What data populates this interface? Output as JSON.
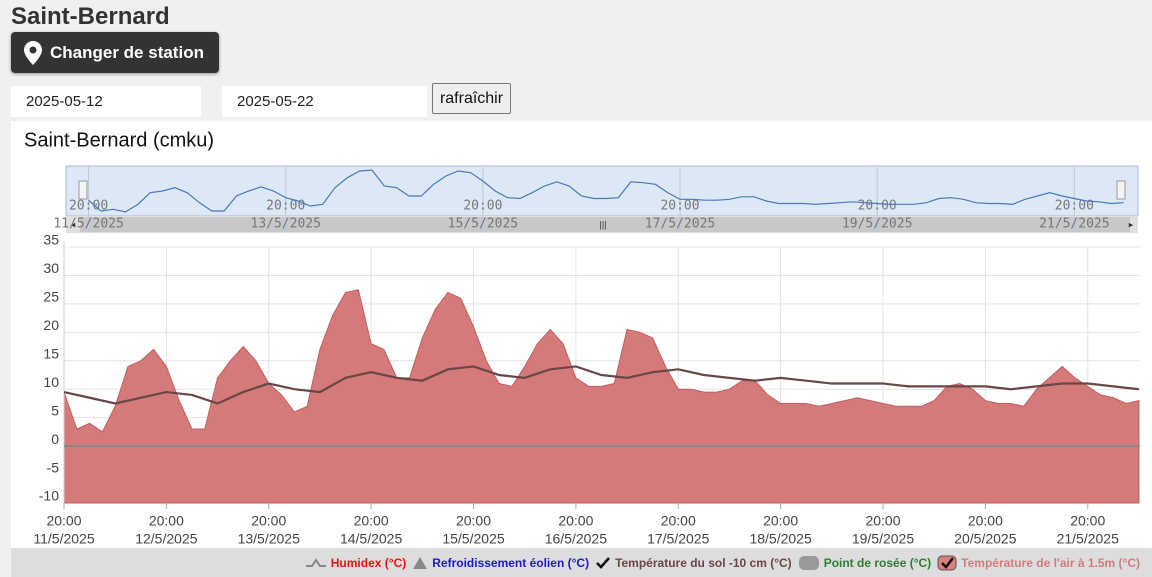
{
  "header": {
    "title": "Saint-Bernard",
    "button": "Changer de station"
  },
  "form": {
    "start": "2025-05-12",
    "end": "2025-05-22",
    "refresh": "rafraîchir"
  },
  "chart_data": {
    "type": "area",
    "title": "Saint-Bernard (cmku)",
    "xlim": [
      "2025-05-11T20:00",
      "2025-05-22T08:15"
    ],
    "ylim": [
      -10,
      35
    ],
    "yticks": [
      -10,
      -5,
      0,
      5,
      10,
      15,
      20,
      25,
      30,
      35
    ],
    "grid": true,
    "xticks": [
      {
        "value": "2025-05-11T20:00",
        "label": [
          "20:00",
          "11/5/2025"
        ]
      },
      {
        "value": "2025-05-12T20:00",
        "label": [
          "20:00",
          "12/5/2025"
        ]
      },
      {
        "value": "2025-05-13T20:00",
        "label": [
          "20:00",
          "13/5/2025"
        ]
      },
      {
        "value": "2025-05-14T20:00",
        "label": [
          "20:00",
          "14/5/2025"
        ]
      },
      {
        "value": "2025-05-15T20:00",
        "label": [
          "20:00",
          "15/5/2025"
        ]
      },
      {
        "value": "2025-05-16T20:00",
        "label": [
          "20:00",
          "16/5/2025"
        ]
      },
      {
        "value": "2025-05-17T20:00",
        "label": [
          "20:00",
          "17/5/2025"
        ]
      },
      {
        "value": "2025-05-18T20:00",
        "label": [
          "20:00",
          "18/5/2025"
        ]
      },
      {
        "value": "2025-05-19T20:00",
        "label": [
          "20:00",
          "19/5/2025"
        ]
      },
      {
        "value": "2025-05-20T20:00",
        "label": [
          "20:00",
          "20/5/2025"
        ]
      },
      {
        "value": "2025-05-21T20:00",
        "label": [
          "20:00",
          "21/5/2025"
        ]
      }
    ],
    "navigator": {
      "xlim": [
        "2025-05-11T14:30",
        "2025-05-22T11:30"
      ],
      "ylim": [
        0,
        30
      ],
      "xticks": [
        {
          "value": "2025-05-11T20:00",
          "label": [
            "20:00",
            "11/5/2025"
          ]
        },
        {
          "value": "2025-05-13T20:00",
          "label": [
            "20:00",
            "13/5/2025"
          ]
        },
        {
          "value": "2025-05-15T20:00",
          "label": [
            "20:00",
            "15/5/2025"
          ]
        },
        {
          "value": "2025-05-17T20:00",
          "label": [
            "20:00",
            "17/5/2025"
          ]
        },
        {
          "value": "2025-05-19T20:00",
          "label": [
            "20:00",
            "19/5/2025"
          ]
        },
        {
          "value": "2025-05-21T20:00",
          "label": [
            "20:00",
            "21/5/2025"
          ]
        }
      ]
    },
    "series": [
      {
        "name": "Humidex (°C)",
        "color": "#ee1111",
        "visible": false
      },
      {
        "name": "Refroidissement éolien (°C)",
        "color": "#1a1acc",
        "visible": false
      },
      {
        "name": "Température du sol -10 cm (°C)",
        "color": "#6a4646",
        "type": "line",
        "visible": true,
        "x": [
          "2025-05-11T20:00",
          "2025-05-12T02:00",
          "2025-05-12T08:00",
          "2025-05-12T14:00",
          "2025-05-12T20:00",
          "2025-05-13T02:00",
          "2025-05-13T08:00",
          "2025-05-13T14:00",
          "2025-05-13T20:00",
          "2025-05-14T02:00",
          "2025-05-14T08:00",
          "2025-05-14T14:00",
          "2025-05-14T20:00",
          "2025-05-15T02:00",
          "2025-05-15T08:00",
          "2025-05-15T14:00",
          "2025-05-15T20:00",
          "2025-05-16T02:00",
          "2025-05-16T08:00",
          "2025-05-16T14:00",
          "2025-05-16T20:00",
          "2025-05-17T02:00",
          "2025-05-17T08:00",
          "2025-05-17T14:00",
          "2025-05-17T20:00",
          "2025-05-18T02:00",
          "2025-05-18T08:00",
          "2025-05-18T14:00",
          "2025-05-18T20:00",
          "2025-05-19T02:00",
          "2025-05-19T08:00",
          "2025-05-19T14:00",
          "2025-05-19T20:00",
          "2025-05-20T02:00",
          "2025-05-20T08:00",
          "2025-05-20T14:00",
          "2025-05-20T20:00",
          "2025-05-21T02:00",
          "2025-05-21T08:00",
          "2025-05-21T14:00",
          "2025-05-21T20:00",
          "2025-05-22T02:00",
          "2025-05-22T08:00"
        ],
        "values": [
          9.5,
          8.5,
          7.5,
          8.5,
          9.5,
          9,
          7.5,
          9.5,
          11,
          10,
          9.5,
          12,
          13,
          12,
          11.5,
          13.5,
          14,
          12.5,
          12,
          13.5,
          14,
          12.5,
          12,
          13,
          13.5,
          12.5,
          12,
          11.5,
          12,
          11.5,
          11,
          11,
          11,
          10.5,
          10.5,
          10.5,
          10.5,
          10,
          10.5,
          11,
          11,
          10.5,
          10
        ]
      },
      {
        "name": "Point de rosée (°C)",
        "color": "#2e7d32",
        "visible": false
      },
      {
        "name": "Température de l'air à 1.5m (°C)",
        "color": "#d47a7a",
        "type": "area",
        "visible": true,
        "x": [
          "2025-05-11T20:00",
          "2025-05-11T23:00",
          "2025-05-12T02:00",
          "2025-05-12T05:00",
          "2025-05-12T08:00",
          "2025-05-12T11:00",
          "2025-05-12T14:00",
          "2025-05-12T17:00",
          "2025-05-12T20:00",
          "2025-05-12T23:00",
          "2025-05-13T02:00",
          "2025-05-13T05:00",
          "2025-05-13T08:00",
          "2025-05-13T11:00",
          "2025-05-13T14:00",
          "2025-05-13T17:00",
          "2025-05-13T20:00",
          "2025-05-13T23:00",
          "2025-05-14T02:00",
          "2025-05-14T05:00",
          "2025-05-14T08:00",
          "2025-05-14T11:00",
          "2025-05-14T14:00",
          "2025-05-14T17:00",
          "2025-05-14T20:00",
          "2025-05-14T23:00",
          "2025-05-15T02:00",
          "2025-05-15T05:00",
          "2025-05-15T08:00",
          "2025-05-15T11:00",
          "2025-05-15T14:00",
          "2025-05-15T17:00",
          "2025-05-15T20:00",
          "2025-05-15T23:00",
          "2025-05-16T02:00",
          "2025-05-16T05:00",
          "2025-05-16T08:00",
          "2025-05-16T11:00",
          "2025-05-16T14:00",
          "2025-05-16T17:00",
          "2025-05-16T20:00",
          "2025-05-16T23:00",
          "2025-05-17T02:00",
          "2025-05-17T05:00",
          "2025-05-17T08:00",
          "2025-05-17T11:00",
          "2025-05-17T14:00",
          "2025-05-17T17:00",
          "2025-05-17T20:00",
          "2025-05-17T23:00",
          "2025-05-18T02:00",
          "2025-05-18T05:00",
          "2025-05-18T08:00",
          "2025-05-18T11:00",
          "2025-05-18T14:00",
          "2025-05-18T17:00",
          "2025-05-18T20:00",
          "2025-05-18T23:00",
          "2025-05-19T02:00",
          "2025-05-19T05:00",
          "2025-05-19T08:00",
          "2025-05-19T11:00",
          "2025-05-19T14:00",
          "2025-05-19T17:00",
          "2025-05-19T20:00",
          "2025-05-19T23:00",
          "2025-05-20T02:00",
          "2025-05-20T05:00",
          "2025-05-20T08:00",
          "2025-05-20T11:00",
          "2025-05-20T14:00",
          "2025-05-20T17:00",
          "2025-05-20T20:00",
          "2025-05-20T23:00",
          "2025-05-21T02:00",
          "2025-05-21T05:00",
          "2025-05-21T08:00",
          "2025-05-21T11:00",
          "2025-05-21T14:00",
          "2025-05-21T17:00",
          "2025-05-21T20:00",
          "2025-05-21T23:00",
          "2025-05-22T02:00",
          "2025-05-22T05:00",
          "2025-05-22T08:00"
        ],
        "values": [
          9.5,
          3,
          4,
          2.5,
          7,
          14,
          15,
          17,
          14,
          8,
          3,
          3,
          12,
          15,
          17.5,
          15,
          11,
          9,
          6,
          7,
          17,
          23,
          27,
          27.5,
          18,
          17,
          12,
          12,
          19,
          24,
          27,
          26,
          21,
          15,
          11,
          10.5,
          14,
          18,
          20.5,
          18,
          12,
          10.5,
          10.5,
          11,
          20.5,
          20,
          19,
          14,
          10,
          10,
          9.5,
          9.5,
          10,
          11.5,
          11.5,
          9,
          7.5,
          7.5,
          7.5,
          7,
          7.5,
          8,
          8.5,
          8,
          7.5,
          7,
          7,
          7,
          8,
          10.5,
          11,
          10,
          8,
          7.5,
          7.5,
          7,
          10,
          12,
          14,
          12,
          10.5,
          9,
          8.5,
          7.5,
          8
        ]
      }
    ]
  }
}
